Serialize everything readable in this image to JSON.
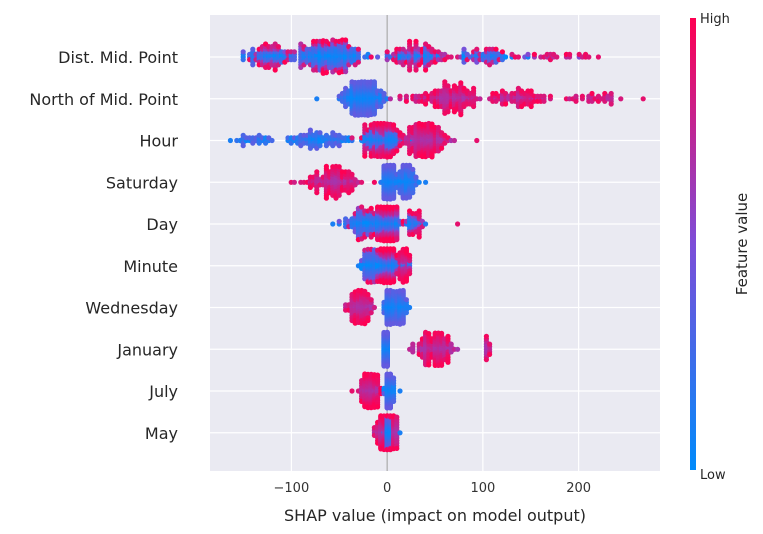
{
  "chart_data": {
    "type": "scatter",
    "subtype": "shap-beeswarm",
    "title": "",
    "xlabel": "SHAP value (impact on model output)",
    "xlim": [
      -185,
      285
    ],
    "xticks": [
      -100,
      0,
      100,
      200
    ],
    "xtick_labels": [
      "−100",
      "0",
      "100",
      "200"
    ],
    "grid": true,
    "legend": "right",
    "colorbar": {
      "title": "Feature value",
      "high_label": "High",
      "low_label": "Low",
      "low_color": "#008bfb",
      "mid_color": "#7d4dd8",
      "high_color": "#ff0052"
    },
    "features": [
      {
        "name": "Dist. Mid. Point",
        "range": [
          -150,
          222
        ],
        "color_trend": "mixed",
        "clusters": [
          {
            "center": -60,
            "spread": 30,
            "weight": 1.0,
            "high_frac": 0.25
          },
          {
            "center": -120,
            "spread": 20,
            "weight": 0.45,
            "high_frac": 0.3
          },
          {
            "center": 30,
            "spread": 30,
            "weight": 0.55,
            "high_frac": 0.55
          },
          {
            "center": 100,
            "spread": 25,
            "weight": 0.3,
            "high_frac": 0.35
          },
          {
            "center": 175,
            "spread": 30,
            "weight": 0.12,
            "high_frac": 1.0
          }
        ]
      },
      {
        "name": "North of Mid. Point",
        "range": [
          -72,
          268
        ],
        "color_trend": "positive",
        "clusters": [
          {
            "center": -25,
            "spread": 16,
            "weight": 1.0,
            "high_frac": 0.0
          },
          {
            "center": 65,
            "spread": 32,
            "weight": 0.55,
            "high_frac": 1.0
          },
          {
            "center": 140,
            "spread": 30,
            "weight": 0.3,
            "high_frac": 1.0
          },
          {
            "center": 220,
            "spread": 25,
            "weight": 0.12,
            "high_frac": 1.0
          }
        ]
      },
      {
        "name": "Hour",
        "range": [
          -165,
          92
        ],
        "color_trend": "positive",
        "clusters": [
          {
            "center": -5,
            "spread": 16,
            "weight": 1.0,
            "high_frac": 0.45
          },
          {
            "center": 40,
            "spread": 18,
            "weight": 0.75,
            "high_frac": 1.0
          },
          {
            "center": -70,
            "spread": 30,
            "weight": 0.35,
            "high_frac": 0.0
          },
          {
            "center": -140,
            "spread": 15,
            "weight": 0.12,
            "high_frac": 0.0
          }
        ]
      },
      {
        "name": "Saturday",
        "range": [
          -100,
          40
        ],
        "color_trend": "negative",
        "clusters": [
          {
            "center": 2,
            "spread": 4,
            "weight": 1.0,
            "high_frac": 0.0
          },
          {
            "center": 20,
            "spread": 9,
            "weight": 0.35,
            "high_frac": 0.0
          },
          {
            "center": -55,
            "spread": 25,
            "weight": 0.45,
            "high_frac": 1.0
          }
        ]
      },
      {
        "name": "Day",
        "range": [
          -58,
          72
        ],
        "color_trend": "mixed",
        "clusters": [
          {
            "center": 0,
            "spread": 9,
            "weight": 1.0,
            "high_frac": 0.45
          },
          {
            "center": -25,
            "spread": 14,
            "weight": 0.25,
            "high_frac": 0.2
          },
          {
            "center": 28,
            "spread": 8,
            "weight": 0.12,
            "high_frac": 0.6
          }
        ]
      },
      {
        "name": "Minute",
        "range": [
          -30,
          24
        ],
        "color_trend": "mixed",
        "clusters": [
          {
            "center": 0,
            "spread": 7,
            "weight": 1.0,
            "high_frac": 0.5
          },
          {
            "center": -18,
            "spread": 6,
            "weight": 0.25,
            "high_frac": 0.1
          },
          {
            "center": 18,
            "spread": 4,
            "weight": 0.2,
            "high_frac": 0.9
          }
        ]
      },
      {
        "name": "Wednesday",
        "range": [
          -45,
          22
        ],
        "color_trend": "negative",
        "clusters": [
          {
            "center": 2,
            "spread": 3,
            "weight": 1.0,
            "high_frac": 0.0
          },
          {
            "center": 14,
            "spread": 4,
            "weight": 0.3,
            "high_frac": 0.0
          },
          {
            "center": -28,
            "spread": 10,
            "weight": 0.35,
            "high_frac": 1.0
          }
        ]
      },
      {
        "name": "January",
        "range": [
          -3,
          108
        ],
        "color_trend": "positive",
        "clusters": [
          {
            "center": -1,
            "spread": 1.2,
            "weight": 1.0,
            "high_frac": 0.0
          },
          {
            "center": 50,
            "spread": 15,
            "weight": 0.4,
            "high_frac": 1.0
          },
          {
            "center": 105,
            "spread": 2,
            "weight": 0.04,
            "high_frac": 1.0
          }
        ]
      },
      {
        "name": "July",
        "range": [
          -37,
          13
        ],
        "color_trend": "negative",
        "clusters": [
          {
            "center": 2,
            "spread": 2.5,
            "weight": 1.0,
            "high_frac": 0.0
          },
          {
            "center": -18,
            "spread": 9,
            "weight": 0.45,
            "high_frac": 1.0
          }
        ]
      },
      {
        "name": "May",
        "range": [
          -13,
          12
        ],
        "color_trend": "negative",
        "clusters": [
          {
            "center": 1,
            "spread": 2,
            "weight": 1.0,
            "high_frac": 0.0
          },
          {
            "center": -5,
            "spread": 4,
            "weight": 0.3,
            "high_frac": 1.0
          },
          {
            "center": 7,
            "spread": 3,
            "weight": 0.15,
            "high_frac": 1.0
          }
        ]
      }
    ]
  }
}
